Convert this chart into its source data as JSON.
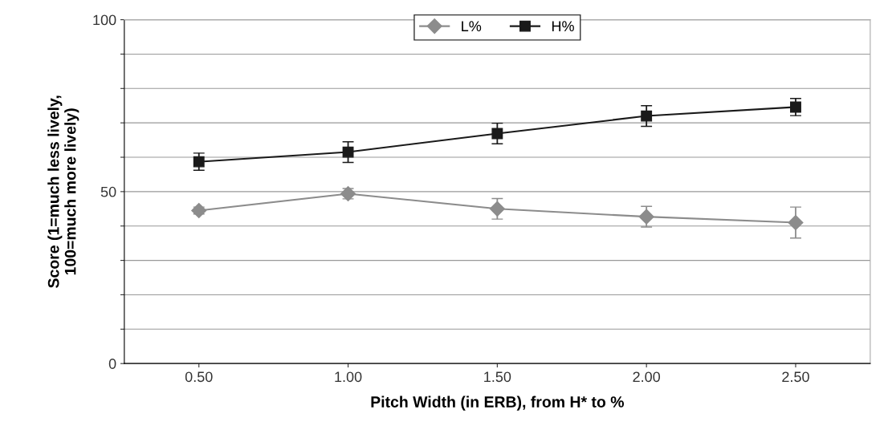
{
  "chart_data": {
    "type": "line",
    "xlabel": "Pitch Width (in ERB), from H* to %",
    "ylabel": "Score (1=much less lively,\n100=much more lively)",
    "categories": [
      "0.50",
      "1.00",
      "1.50",
      "2.00",
      "2.50"
    ],
    "series": [
      {
        "name": "L%",
        "color": "#8c8c8c",
        "marker": "diamond",
        "values": [
          44.5,
          49.4,
          45,
          42.7,
          41
        ],
        "errors": [
          1,
          1.5,
          3,
          3,
          4.5
        ]
      },
      {
        "name": "H%",
        "color": "#1a1a1a",
        "marker": "square",
        "values": [
          58.7,
          61.5,
          66.9,
          72,
          74.6
        ],
        "errors": [
          2.5,
          3,
          3,
          3,
          2.5
        ]
      }
    ],
    "ylim": [
      0,
      100
    ],
    "yticks": [
      0,
      {
        "value": 10,
        "label": null
      },
      {
        "value": 20,
        "label": null
      },
      {
        "value": 30,
        "label": null
      },
      {
        "value": 40,
        "label": null
      },
      50,
      {
        "value": 60,
        "label": null
      },
      {
        "value": 70,
        "label": null
      },
      {
        "value": 80,
        "label": null
      },
      {
        "value": 90,
        "label": null
      },
      100
    ],
    "grid": "y",
    "legend": "top"
  }
}
